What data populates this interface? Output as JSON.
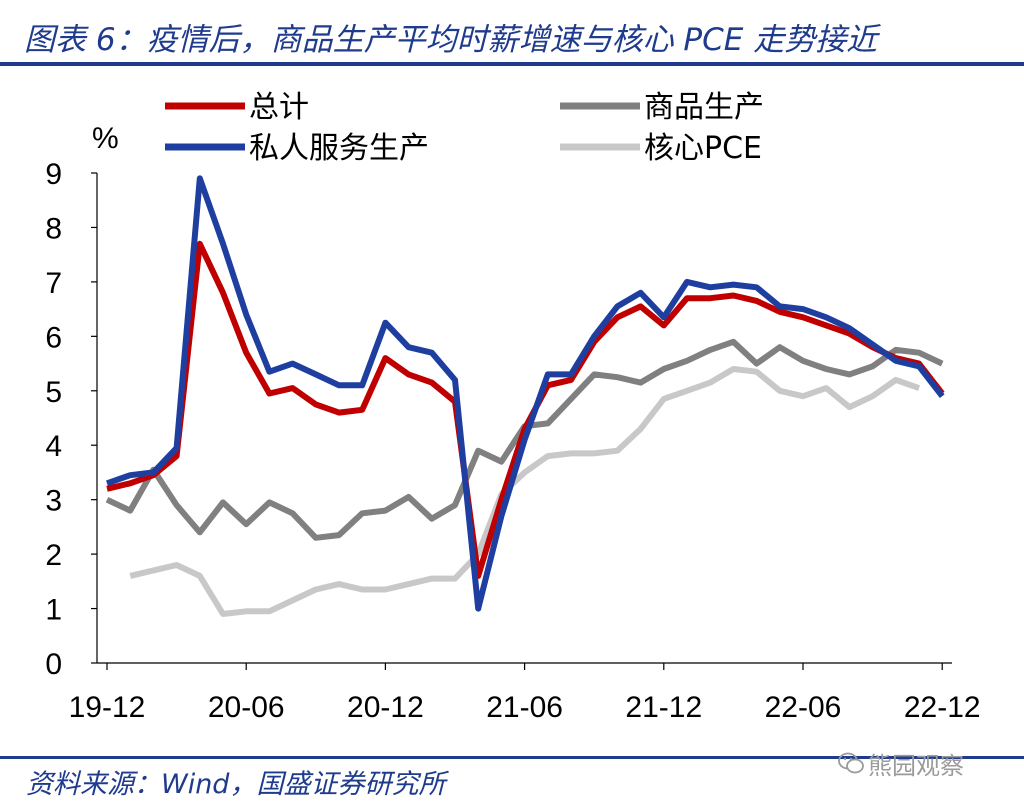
{
  "header": {
    "title": "图表 6：疫情后，商品生产平均时薪增速与核心 PCE 走势接近"
  },
  "footer": {
    "source": "资料来源：Wind，国盛证券研究所",
    "watermark": "熊园观察"
  },
  "chart_data": {
    "type": "line",
    "title": "图表 6：疫情后，商品生产平均时薪增速与核心 PCE 走势接近",
    "ylabel": "%",
    "xlabel": "",
    "ylim": [
      0,
      9
    ],
    "yticks": [
      0,
      1,
      2,
      3,
      4,
      5,
      6,
      7,
      8,
      9
    ],
    "x": [
      "2019-12",
      "2020-01",
      "2020-02",
      "2020-03",
      "2020-04",
      "2020-05",
      "2020-06",
      "2020-07",
      "2020-08",
      "2020-09",
      "2020-10",
      "2020-11",
      "2020-12",
      "2021-01",
      "2021-02",
      "2021-03",
      "2021-04",
      "2021-05",
      "2021-06",
      "2021-07",
      "2021-08",
      "2021-09",
      "2021-10",
      "2021-11",
      "2021-12",
      "2022-01",
      "2022-02",
      "2022-03",
      "2022-04",
      "2022-05",
      "2022-06",
      "2022-07",
      "2022-08",
      "2022-09",
      "2022-10",
      "2022-11",
      "2022-12"
    ],
    "xtick_labels": [
      "19-12",
      "20-06",
      "20-12",
      "21-06",
      "21-12",
      "22-06",
      "22-12"
    ],
    "xtick_indices": [
      0,
      6,
      12,
      18,
      24,
      30,
      36
    ],
    "legend": {
      "placement": "top",
      "columns": 2
    },
    "series": [
      {
        "name": "总计",
        "color": "#c00000",
        "values": [
          3.2,
          3.3,
          3.45,
          3.8,
          7.7,
          6.8,
          5.7,
          4.95,
          5.05,
          4.75,
          4.6,
          4.65,
          5.6,
          5.3,
          5.15,
          4.8,
          1.6,
          3.0,
          4.3,
          5.1,
          5.2,
          5.9,
          6.35,
          6.55,
          6.2,
          6.7,
          6.7,
          6.75,
          6.65,
          6.45,
          6.35,
          6.2,
          6.05,
          5.8,
          5.6,
          5.5,
          4.95
        ]
      },
      {
        "name": "商品生产",
        "color": "#808080",
        "values": [
          3.0,
          2.8,
          3.55,
          2.9,
          2.4,
          2.95,
          2.55,
          2.95,
          2.75,
          2.3,
          2.35,
          2.75,
          2.8,
          3.05,
          2.65,
          2.9,
          3.9,
          3.7,
          4.35,
          4.4,
          4.85,
          5.3,
          5.25,
          5.15,
          5.4,
          5.55,
          5.75,
          5.9,
          5.5,
          5.8,
          5.55,
          5.4,
          5.3,
          5.45,
          5.75,
          5.7,
          5.5
        ]
      },
      {
        "name": "私人服务生产",
        "color": "#1f3fa0",
        "values": [
          3.3,
          3.45,
          3.5,
          3.95,
          8.9,
          7.7,
          6.4,
          5.35,
          5.5,
          5.3,
          5.1,
          5.1,
          6.25,
          5.8,
          5.7,
          5.2,
          1.0,
          2.7,
          4.1,
          5.3,
          5.3,
          6.0,
          6.55,
          6.8,
          6.35,
          7.0,
          6.9,
          6.95,
          6.9,
          6.55,
          6.5,
          6.35,
          6.15,
          5.85,
          5.55,
          5.45,
          4.9
        ]
      },
      {
        "name": "核心PCE",
        "color": "#c8c8c8",
        "values": [
          null,
          1.6,
          1.7,
          1.8,
          1.6,
          0.9,
          0.95,
          0.95,
          1.15,
          1.35,
          1.45,
          1.35,
          1.35,
          1.45,
          1.55,
          1.55,
          2.0,
          3.1,
          3.5,
          3.8,
          3.85,
          3.85,
          3.9,
          4.3,
          4.85,
          5.0,
          5.15,
          5.4,
          5.35,
          5.0,
          4.9,
          5.05,
          4.7,
          4.9,
          5.2,
          5.05,
          null
        ]
      }
    ]
  }
}
